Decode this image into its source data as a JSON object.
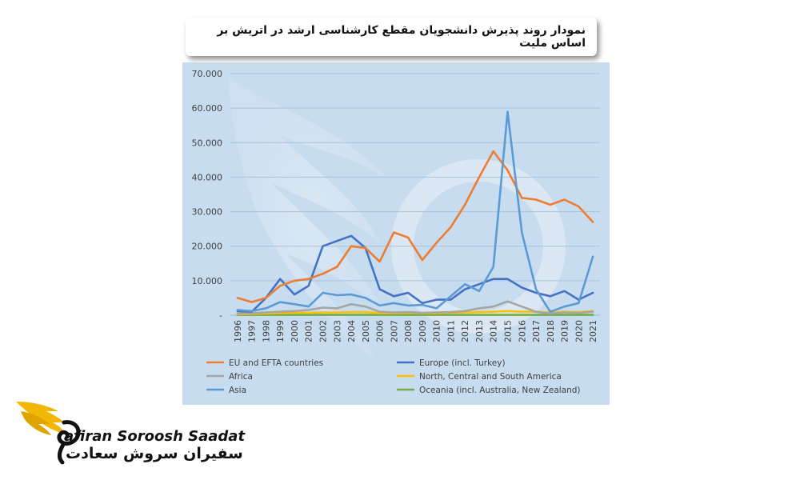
{
  "title": "نمودار روند پذیرش دانشجویان مقطع کارشناسی ارشد در اتریش بر اساس ملیت",
  "logo": {
    "text_en": "afiran Soroosh Saadat",
    "text_fa": "سفیران سروش سعادت"
  },
  "chart_data": {
    "type": "line",
    "x": [
      "1996",
      "1997",
      "1998",
      "1999",
      "2000",
      "2001",
      "2002",
      "2003",
      "2004",
      "2005",
      "2006",
      "2007",
      "2008",
      "2009",
      "2010",
      "2011",
      "2012",
      "2013",
      "2014",
      "2015",
      "2016",
      "2017",
      "2018",
      "2019",
      "2020",
      "2021"
    ],
    "ylim": [
      0,
      70000
    ],
    "yticks": [
      0,
      10000,
      20000,
      30000,
      40000,
      50000,
      60000,
      70000
    ],
    "ytick_labels": [
      "-",
      "10.000",
      "20.000",
      "30.000",
      "40.000",
      "50.000",
      "60.000",
      "70.000"
    ],
    "grid": true,
    "legend_position": "bottom",
    "series": [
      {
        "name": "EU and EFTA countries",
        "color": "#ed7d31",
        "values": [
          5000,
          3800,
          5000,
          8500,
          10000,
          10500,
          12000,
          14000,
          20000,
          19500,
          15500,
          24000,
          22500,
          16000,
          21000,
          25500,
          32000,
          40000,
          47500,
          42000,
          34000,
          33500,
          32000,
          33500,
          31500,
          27000
        ]
      },
      {
        "name": "Europe (incl. Turkey)",
        "color": "#4472c4",
        "values": [
          1200,
          1000,
          5000,
          10500,
          6000,
          8500,
          20000,
          21500,
          23000,
          19500,
          7500,
          5500,
          6500,
          3500,
          4500,
          4500,
          7500,
          9000,
          10500,
          10500,
          8000,
          6500,
          5500,
          7000,
          4500,
          6500
        ]
      },
      {
        "name": "Africa",
        "color": "#a5a5a5",
        "values": [
          500,
          600,
          800,
          1000,
          1200,
          1500,
          2200,
          2000,
          3200,
          2500,
          1000,
          800,
          900,
          700,
          800,
          900,
          1200,
          2000,
          2500,
          4000,
          2500,
          1000,
          500,
          800,
          700,
          1000
        ]
      },
      {
        "name": "North, Central and South America",
        "color": "#ffc000",
        "values": [
          300,
          400,
          500,
          600,
          700,
          700,
          800,
          800,
          900,
          900,
          600,
          600,
          700,
          600,
          600,
          700,
          800,
          900,
          1000,
          1200,
          1000,
          1000,
          800,
          1000,
          900,
          1200
        ]
      },
      {
        "name": "Asia",
        "color": "#5b9bd5",
        "values": [
          1500,
          1200,
          2000,
          3800,
          3200,
          2500,
          6500,
          5800,
          6000,
          5000,
          2800,
          3500,
          2800,
          3000,
          2000,
          5500,
          9000,
          7000,
          14000,
          59000,
          24000,
          7500,
          1000,
          2500,
          3500,
          17000
        ]
      },
      {
        "name": "Oceania (incl. Australia, New Zealand)",
        "color": "#70ad47",
        "values": [
          100,
          100,
          100,
          100,
          100,
          100,
          100,
          100,
          100,
          100,
          100,
          100,
          100,
          100,
          100,
          100,
          100,
          100,
          100,
          100,
          100,
          100,
          100,
          100,
          100,
          100
        ]
      }
    ]
  }
}
